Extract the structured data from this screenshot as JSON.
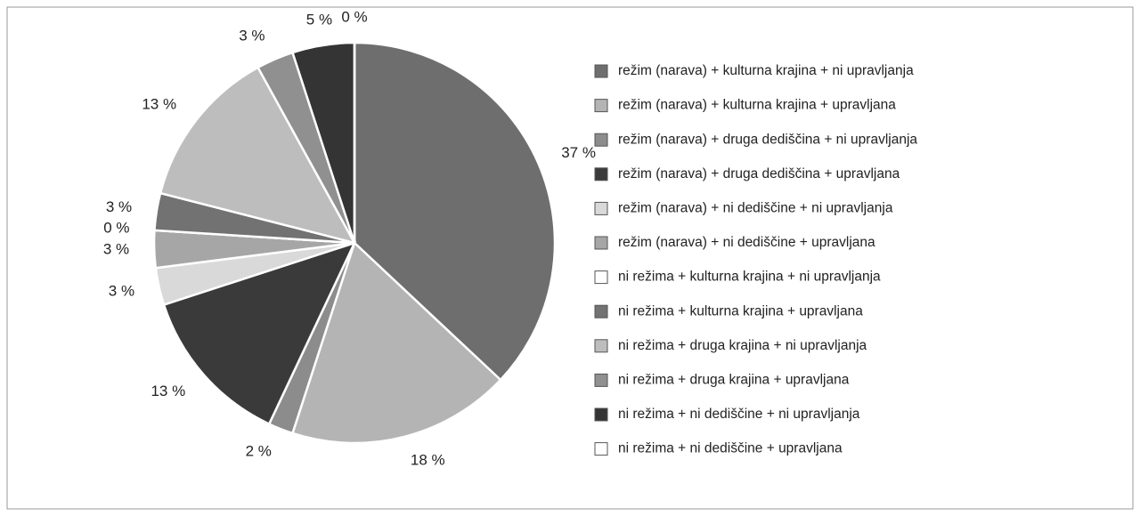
{
  "chart_data": {
    "type": "pie",
    "categories": [
      "režim (narava) + kulturna krajina + ni upravljanja",
      "režim (narava) + kulturna krajina + upravljana",
      "režim (narava) + druga dediščina + ni upravljanja",
      "režim (narava) + druga dediščina + upravljana",
      "režim (narava) + ni dediščine + ni upravljanja",
      "režim (narava) + ni dediščine + upravljana",
      "ni režima + kulturna krajina + ni upravljanja",
      "ni režima + kulturna krajina + upravljana",
      "ni režima + druga krajina + ni upravljanja",
      "ni režima + druga krajina + upravljana",
      "ni režima + ni dediščine + ni upravljanja",
      "ni režima + ni dediščine + upravljana"
    ],
    "values": [
      37,
      18,
      2,
      13,
      3,
      3,
      0,
      3,
      13,
      3,
      5,
      0
    ],
    "value_labels": [
      "37 %",
      "18 %",
      "2 %",
      "13 %",
      "3 %",
      "3 %",
      "0 %",
      "3 %",
      "13 %",
      "3 %",
      "5 %",
      "0 %"
    ],
    "colors": [
      "#6e6e6e",
      "#b4b4b4",
      "#8c8c8c",
      "#3a3a3a",
      "#d9d9d9",
      "#a6a6a6",
      "#ffffff",
      "#727272",
      "#bdbdbd",
      "#909090",
      "#343434",
      "#ffffff"
    ]
  }
}
